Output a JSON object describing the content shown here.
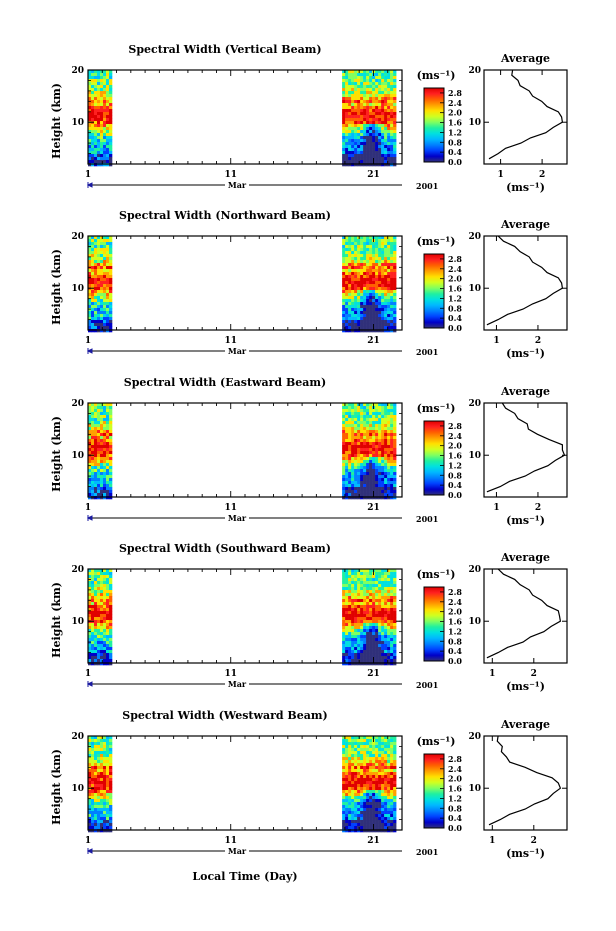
{
  "figure": {
    "xlabel": "Local Time (Day)",
    "colorbar_unit": "(ms⁻¹)",
    "avg_title": "Average",
    "avg_xlabel": "(ms⁻¹)"
  },
  "colors": {
    "jet": [
      "#30307a",
      "#0000c8",
      "#0040ff",
      "#0080ff",
      "#00b8ff",
      "#00e0e0",
      "#20f0a0",
      "#80ff60",
      "#d0ff20",
      "#ffe000",
      "#ffa000",
      "#ff6000",
      "#ff2020",
      "#e00000"
    ],
    "line": "#000000"
  },
  "chart_data": [
    {
      "type": "heatmap",
      "title": "Spectral Width (Vertical Beam)",
      "ylabel": "Height (km)",
      "x_ticks": [
        "1",
        "11",
        "21"
      ],
      "x_month": "Mar",
      "x_year": "2001",
      "x_range_days": [
        1,
        23
      ],
      "data_spans_days": [
        [
          1.0,
          2.6
        ],
        [
          18.8,
          22.4
        ]
      ],
      "y_ticks": [
        "10",
        "20"
      ],
      "ylim": [
        2,
        20
      ],
      "colorbar_ticks": [
        "0.0",
        "0.4",
        "0.8",
        "1.2",
        "1.6",
        "2.0",
        "2.4",
        "2.8"
      ],
      "colorbar_range": [
        0,
        3.0
      ],
      "average": {
        "x_ticks": [
          "1",
          "2"
        ],
        "x_range": [
          0.6,
          2.6
        ],
        "height_km": [
          3,
          4,
          5,
          6,
          7,
          8,
          9,
          10,
          11,
          12,
          13,
          14,
          15,
          16,
          17,
          18,
          19,
          20
        ],
        "width": [
          0.75,
          0.9,
          1.15,
          1.45,
          1.75,
          2.05,
          2.3,
          2.45,
          2.5,
          2.35,
          2.15,
          1.95,
          1.8,
          1.65,
          1.5,
          1.38,
          1.3,
          1.25
        ]
      }
    },
    {
      "type": "heatmap",
      "title": "Spectral Width (Northward Beam)",
      "ylabel": "Height (km)",
      "x_ticks": [
        "1",
        "11",
        "21"
      ],
      "x_month": "Mar",
      "x_year": "2001",
      "x_range_days": [
        1,
        23
      ],
      "data_spans_days": [
        [
          1.0,
          2.6
        ],
        [
          18.8,
          22.4
        ]
      ],
      "y_ticks": [
        "10",
        "20"
      ],
      "ylim": [
        2,
        20
      ],
      "colorbar_ticks": [
        "0.0",
        "0.4",
        "0.8",
        "1.2",
        "1.6",
        "2.0",
        "2.4",
        "2.8"
      ],
      "colorbar_range": [
        0,
        3.0
      ],
      "average": {
        "x_ticks": [
          "1",
          "2"
        ],
        "x_range": [
          0.7,
          2.7
        ],
        "height_km": [
          3,
          4,
          5,
          6,
          7,
          8,
          9,
          10,
          11,
          12,
          13,
          14,
          15,
          16,
          17,
          18,
          19,
          20
        ],
        "width": [
          0.8,
          1.0,
          1.3,
          1.6,
          1.9,
          2.15,
          2.4,
          2.55,
          2.6,
          2.45,
          2.25,
          2.05,
          1.9,
          1.75,
          1.6,
          1.4,
          1.2,
          1.0
        ]
      }
    },
    {
      "type": "heatmap",
      "title": "Spectral Width (Eastward Beam)",
      "ylabel": "Height (km)",
      "x_ticks": [
        "1",
        "11",
        "21"
      ],
      "x_month": "Mar",
      "x_year": "2001",
      "x_range_days": [
        1,
        23
      ],
      "data_spans_days": [
        [
          1.0,
          2.6
        ],
        [
          18.8,
          22.4
        ]
      ],
      "y_ticks": [
        "10",
        "20"
      ],
      "ylim": [
        2,
        20
      ],
      "colorbar_ticks": [
        "0.0",
        "0.4",
        "0.8",
        "1.2",
        "1.6",
        "2.0",
        "2.4",
        "2.8"
      ],
      "colorbar_range": [
        0,
        3.0
      ],
      "average": {
        "x_ticks": [
          "1",
          "2"
        ],
        "x_range": [
          0.7,
          2.7
        ],
        "height_km": [
          3,
          4,
          5,
          6,
          7,
          8,
          9,
          10,
          11,
          12,
          13,
          14,
          15,
          16,
          17,
          18,
          19,
          20
        ],
        "width": [
          0.8,
          1.05,
          1.35,
          1.65,
          1.95,
          2.2,
          2.45,
          2.6,
          2.62,
          2.55,
          2.3,
          1.95,
          1.8,
          1.7,
          1.55,
          1.4,
          1.25,
          1.1
        ]
      }
    },
    {
      "type": "heatmap",
      "title": "Spectral Width (Southward Beam)",
      "ylabel": "Height (km)",
      "x_ticks": [
        "1",
        "11",
        "21"
      ],
      "x_month": "Mar",
      "x_year": "2001",
      "x_range_days": [
        1,
        23
      ],
      "data_spans_days": [
        [
          1.0,
          2.6
        ],
        [
          18.8,
          22.4
        ]
      ],
      "y_ticks": [
        "10",
        "20"
      ],
      "ylim": [
        2,
        20
      ],
      "colorbar_ticks": [
        "0.0",
        "0.4",
        "0.8",
        "1.2",
        "1.6",
        "2.0",
        "2.4",
        "2.8"
      ],
      "colorbar_range": [
        0,
        3.0
      ],
      "average": {
        "x_ticks": [
          "1",
          "2"
        ],
        "x_range": [
          0.8,
          2.8
        ],
        "height_km": [
          3,
          4,
          5,
          6,
          7,
          8,
          9,
          10,
          11,
          12,
          13,
          14,
          15,
          16,
          17,
          18,
          19,
          20
        ],
        "width": [
          0.9,
          1.1,
          1.4,
          1.7,
          1.95,
          2.2,
          2.45,
          2.6,
          2.65,
          2.55,
          2.35,
          2.15,
          2.0,
          1.85,
          1.7,
          1.5,
          1.3,
          1.1
        ]
      }
    },
    {
      "type": "heatmap",
      "title": "Spectral Width (Westward Beam)",
      "ylabel": "Height (km)",
      "x_ticks": [
        "1",
        "11",
        "21"
      ],
      "x_month": "Mar",
      "x_year": "2001",
      "x_range_days": [
        1,
        23
      ],
      "data_spans_days": [
        [
          1.0,
          2.6
        ],
        [
          18.8,
          22.4
        ]
      ],
      "y_ticks": [
        "10",
        "20"
      ],
      "ylim": [
        2,
        20
      ],
      "colorbar_ticks": [
        "0.0",
        "0.4",
        "0.8",
        "1.2",
        "1.6",
        "2.0",
        "2.4",
        "2.8"
      ],
      "colorbar_range": [
        0,
        3.0
      ],
      "average": {
        "x_ticks": [
          "1",
          "2"
        ],
        "x_range": [
          0.8,
          2.8
        ],
        "height_km": [
          3,
          4,
          5,
          6,
          7,
          8,
          9,
          10,
          11,
          12,
          13,
          14,
          15,
          16,
          17,
          18,
          19,
          20
        ],
        "width": [
          0.95,
          1.15,
          1.45,
          1.75,
          2.05,
          2.3,
          2.5,
          2.6,
          2.62,
          2.4,
          2.1,
          1.75,
          1.45,
          1.3,
          1.25,
          1.2,
          1.15,
          1.1
        ]
      }
    }
  ]
}
